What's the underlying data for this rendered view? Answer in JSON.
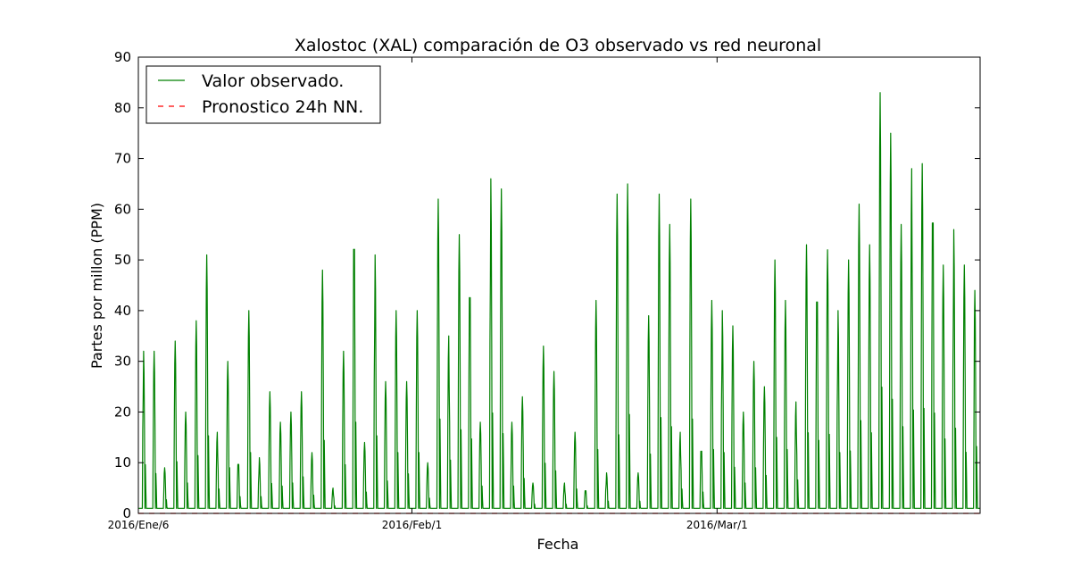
{
  "chart_data": {
    "type": "line",
    "title": "Xalostoc (XAL) comparación de O3 observado vs red neuronal",
    "xlabel": "Fecha",
    "ylabel": "Partes por millon (PPM)",
    "ylim": [
      0,
      90
    ],
    "yticks": [
      0,
      10,
      20,
      30,
      40,
      50,
      60,
      70,
      80,
      90
    ],
    "x_range": [
      "2016-01-06",
      "2016-03-26"
    ],
    "xticks": [
      {
        "date": "2016-01-06",
        "label": "2016/Ene/6"
      },
      {
        "date": "2016-02-01",
        "label": "2016/Feb/1"
      },
      {
        "date": "2016-03-01",
        "label": "2016/Mar/1"
      }
    ],
    "grid": false,
    "legend_position": "top-left",
    "series": [
      {
        "name": "Valor observado.",
        "color": "#008000",
        "style": "solid",
        "daily": [
          {
            "date": "2016-01-06",
            "peak": 32
          },
          {
            "date": "2016-01-07",
            "peak": 32
          },
          {
            "date": "2016-01-08",
            "peak": 9
          },
          {
            "date": "2016-01-09",
            "peak": 34
          },
          {
            "date": "2016-01-10",
            "peak": 20
          },
          {
            "date": "2016-01-11",
            "peak": 38
          },
          {
            "date": "2016-01-12",
            "peak": 51
          },
          {
            "date": "2016-01-13",
            "peak": 16
          },
          {
            "date": "2016-01-14",
            "peak": 30
          },
          {
            "date": "2016-01-15",
            "peak": 11
          },
          {
            "date": "2016-01-16",
            "peak": 40
          },
          {
            "date": "2016-01-17",
            "peak": 11
          },
          {
            "date": "2016-01-18",
            "peak": 24
          },
          {
            "date": "2016-01-19",
            "peak": 18
          },
          {
            "date": "2016-01-20",
            "peak": 20
          },
          {
            "date": "2016-01-21",
            "peak": 24
          },
          {
            "date": "2016-01-22",
            "peak": 12
          },
          {
            "date": "2016-01-23",
            "peak": 48
          },
          {
            "date": "2016-01-24",
            "peak": 5
          },
          {
            "date": "2016-01-25",
            "peak": 32
          },
          {
            "date": "2016-01-26",
            "peak": 60
          },
          {
            "date": "2016-01-27",
            "peak": 14
          },
          {
            "date": "2016-01-28",
            "peak": 51
          },
          {
            "date": "2016-01-29",
            "peak": 26
          },
          {
            "date": "2016-01-30",
            "peak": 40
          },
          {
            "date": "2016-01-31",
            "peak": 26
          },
          {
            "date": "2016-02-01",
            "peak": 40
          },
          {
            "date": "2016-02-02",
            "peak": 10
          },
          {
            "date": "2016-02-03",
            "peak": 62
          },
          {
            "date": "2016-02-04",
            "peak": 35
          },
          {
            "date": "2016-02-05",
            "peak": 55
          },
          {
            "date": "2016-02-06",
            "peak": 49
          },
          {
            "date": "2016-02-07",
            "peak": 18
          },
          {
            "date": "2016-02-08",
            "peak": 66
          },
          {
            "date": "2016-02-09",
            "peak": 64
          },
          {
            "date": "2016-02-10",
            "peak": 18
          },
          {
            "date": "2016-02-11",
            "peak": 23
          },
          {
            "date": "2016-02-12",
            "peak": 6
          },
          {
            "date": "2016-02-13",
            "peak": 33
          },
          {
            "date": "2016-02-14",
            "peak": 28
          },
          {
            "date": "2016-02-15",
            "peak": 6
          },
          {
            "date": "2016-02-16",
            "peak": 16
          },
          {
            "date": "2016-02-17",
            "peak": 5
          },
          {
            "date": "2016-02-18",
            "peak": 42
          },
          {
            "date": "2016-02-19",
            "peak": 8
          },
          {
            "date": "2016-02-20",
            "peak": 63
          },
          {
            "date": "2016-02-21",
            "peak": 65
          },
          {
            "date": "2016-02-22",
            "peak": 8
          },
          {
            "date": "2016-02-23",
            "peak": 39
          },
          {
            "date": "2016-02-24",
            "peak": 63
          },
          {
            "date": "2016-02-25",
            "peak": 57
          },
          {
            "date": "2016-02-26",
            "peak": 16
          },
          {
            "date": "2016-02-27",
            "peak": 62
          },
          {
            "date": "2016-02-28",
            "peak": 14
          },
          {
            "date": "2016-02-29",
            "peak": 42
          },
          {
            "date": "2016-03-01",
            "peak": 40
          },
          {
            "date": "2016-03-02",
            "peak": 37
          },
          {
            "date": "2016-03-03",
            "peak": 20
          },
          {
            "date": "2016-03-04",
            "peak": 30
          },
          {
            "date": "2016-03-05",
            "peak": 25
          },
          {
            "date": "2016-03-06",
            "peak": 50
          },
          {
            "date": "2016-03-07",
            "peak": 42
          },
          {
            "date": "2016-03-08",
            "peak": 22
          },
          {
            "date": "2016-03-09",
            "peak": 53
          },
          {
            "date": "2016-03-10",
            "peak": 48
          },
          {
            "date": "2016-03-11",
            "peak": 52
          },
          {
            "date": "2016-03-12",
            "peak": 40
          },
          {
            "date": "2016-03-13",
            "peak": 50
          },
          {
            "date": "2016-03-14",
            "peak": 61
          },
          {
            "date": "2016-03-15",
            "peak": 53
          },
          {
            "date": "2016-03-16",
            "peak": 83
          },
          {
            "date": "2016-03-17",
            "peak": 75
          },
          {
            "date": "2016-03-18",
            "peak": 57
          },
          {
            "date": "2016-03-19",
            "peak": 68
          },
          {
            "date": "2016-03-20",
            "peak": 69
          },
          {
            "date": "2016-03-21",
            "peak": 66
          },
          {
            "date": "2016-03-22",
            "peak": 49
          },
          {
            "date": "2016-03-23",
            "peak": 56
          },
          {
            "date": "2016-03-24",
            "peak": 49
          },
          {
            "date": "2016-03-25",
            "peak": 44
          }
        ]
      },
      {
        "name": "Pronostico 24h NN.",
        "color": "#ff0000",
        "style": "dashed",
        "constant_value": 0
      }
    ]
  }
}
